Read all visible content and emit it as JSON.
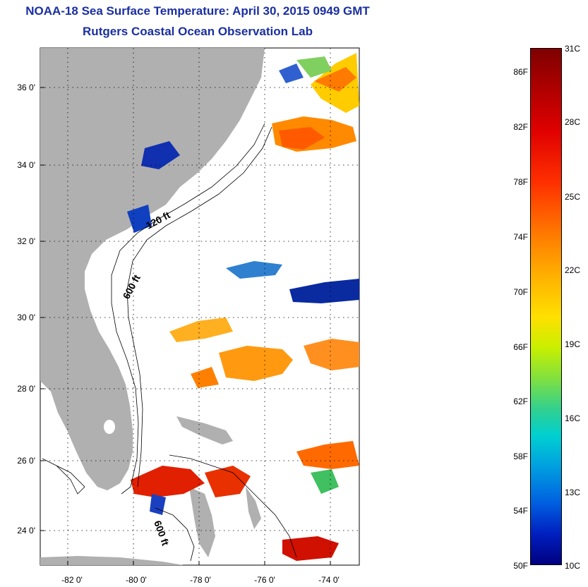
{
  "header": {
    "title": "NOAA-18 Sea Surface Temperature:  April 30, 2015 0949 GMT",
    "subtitle": "Rutgers Coastal Ocean Observation Lab"
  },
  "map": {
    "lat_labels": [
      "36 0'",
      "34 0'",
      "32 0'",
      "30 0'",
      "28 0'",
      "26 0'",
      "24 0'"
    ],
    "lon_labels": [
      "-82 0'",
      "-80 0'",
      "-78 0'",
      "-76 0'",
      "-74 0'"
    ],
    "contour_labels": [
      "120 ft",
      "600 ft",
      "600 ft"
    ],
    "land_color": "#b0b0b0",
    "grid": "dotted"
  },
  "colorbar": {
    "fahrenheit_labels": [
      "86F",
      "82F",
      "78F",
      "74F",
      "70F",
      "66F",
      "62F",
      "58F",
      "54F",
      "50F"
    ],
    "celsius_labels": [
      "31C",
      "28C",
      "25C",
      "22C",
      "19C",
      "16C",
      "13C",
      "10C"
    ]
  }
}
